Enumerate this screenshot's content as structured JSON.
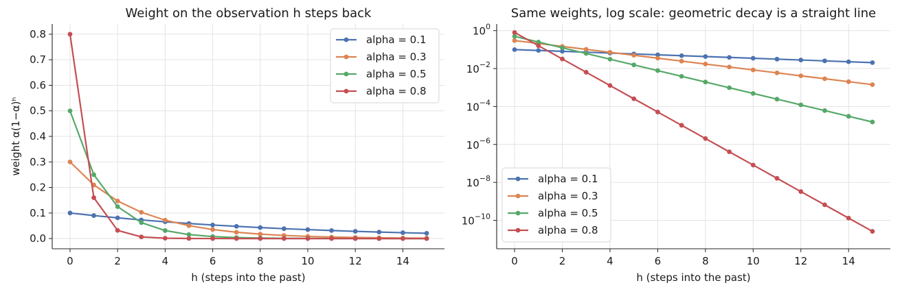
{
  "chart_data": [
    {
      "type": "line",
      "title": "Weight on the observation h steps back",
      "xlabel": "h (steps into the past)",
      "ylabel": "weight  α(1−α)ʰ",
      "xlim": [
        -0.75,
        15.75
      ],
      "ylim": [
        -0.04,
        0.84
      ],
      "yscale": "linear",
      "xticks": [
        0,
        2,
        4,
        6,
        8,
        10,
        12,
        14
      ],
      "yticks": [
        0.0,
        0.1,
        0.2,
        0.3,
        0.4,
        0.5,
        0.6,
        0.7,
        0.8
      ],
      "ytick_labels": [
        "0.0",
        "0.1",
        "0.2",
        "0.3",
        "0.4",
        "0.5",
        "0.6",
        "0.7",
        "0.8"
      ],
      "grid": true,
      "legend_position": "upper right",
      "x": [
        0,
        1,
        2,
        3,
        4,
        5,
        6,
        7,
        8,
        9,
        10,
        11,
        12,
        13,
        14,
        15
      ],
      "series": [
        {
          "name": "alpha = 0.1",
          "color": "#4c72b0",
          "values": [
            0.1,
            0.09,
            0.081,
            0.0729,
            0.0656,
            0.059,
            0.0531,
            0.0478,
            0.043,
            0.0387,
            0.0349,
            0.0314,
            0.0282,
            0.0254,
            0.0229,
            0.0206
          ]
        },
        {
          "name": "alpha = 0.3",
          "color": "#dd8452",
          "values": [
            0.3,
            0.21,
            0.147,
            0.1029,
            0.072,
            0.0504,
            0.0353,
            0.0247,
            0.0173,
            0.0121,
            0.0085,
            0.0059,
            0.0042,
            0.0029,
            0.002,
            0.0014
          ]
        },
        {
          "name": "alpha = 0.5",
          "color": "#55a868",
          "values": [
            0.5,
            0.25,
            0.125,
            0.0625,
            0.0313,
            0.0156,
            0.0078,
            0.0039,
            0.002,
            0.001,
            0.0005,
            0.0002,
            0.0001,
            0.0001,
            0.0,
            0.0
          ]
        },
        {
          "name": "alpha = 0.8",
          "color": "#c44e52",
          "values": [
            0.8,
            0.16,
            0.032,
            0.0064,
            0.0013,
            0.0003,
            0.0001,
            0.0,
            0.0,
            0.0,
            0.0,
            0.0,
            0.0,
            0.0,
            0.0,
            0.0
          ]
        }
      ]
    },
    {
      "type": "line",
      "title": "Same weights, log scale: geometric decay is a straight line",
      "xlabel": "h (steps into the past)",
      "ylabel": "",
      "xlim": [
        -0.75,
        15.75
      ],
      "ylim_log10": [
        -11.5,
        0.35
      ],
      "yscale": "log",
      "xticks": [
        0,
        2,
        4,
        6,
        8,
        10,
        12,
        14
      ],
      "yticks_exponents": [
        0,
        -2,
        -4,
        -6,
        -8,
        -10
      ],
      "ytick_labels": [
        "10",
        "10",
        "10",
        "10",
        "10",
        "10"
      ],
      "ytick_superscripts": [
        "0",
        "−2",
        "−4",
        "−6",
        "−8",
        "−10"
      ],
      "grid": true,
      "legend_position": "lower left",
      "x": [
        0,
        1,
        2,
        3,
        4,
        5,
        6,
        7,
        8,
        9,
        10,
        11,
        12,
        13,
        14,
        15
      ],
      "series": [
        {
          "name": "alpha = 0.1",
          "color": "#4c72b0",
          "values": [
            0.1,
            0.09,
            0.081,
            0.0729,
            0.06561,
            0.059049,
            0.0531441,
            0.04782969,
            0.043046721,
            0.0387420489,
            0.03486784401,
            0.031381059609,
            0.0282429536481,
            0.02541865828329,
            0.022876792454961,
            0.0205891132094649
          ]
        },
        {
          "name": "alpha = 0.3",
          "color": "#dd8452",
          "values": [
            0.3,
            0.21,
            0.147,
            0.1029,
            0.07203,
            0.050421,
            0.0352947,
            0.02470629,
            0.017294403,
            0.0121060821,
            0.00847425747,
            0.005931980229,
            0.0041523861603,
            0.00290667031221,
            0.002034669218547,
            0.0014242684529829
          ]
        },
        {
          "name": "alpha = 0.5",
          "color": "#55a868",
          "values": [
            0.5,
            0.25,
            0.125,
            0.0625,
            0.03125,
            0.015625,
            0.0078125,
            0.00390625,
            0.001953125,
            0.0009765625,
            0.00048828125,
            0.000244140625,
            0.0001220703125,
            6.103515625e-05,
            3.0517578125e-05,
            1.52587890625e-05
          ]
        },
        {
          "name": "alpha = 0.8",
          "color": "#c44e52",
          "values": [
            0.8,
            0.16,
            0.032,
            0.0064,
            0.00128,
            0.000256,
            5.12e-05,
            1.024e-05,
            2.048e-06,
            4.096e-07,
            8.192e-08,
            1.6384e-08,
            3.2768e-09,
            6.5536e-10,
            1.31072e-10,
            2.62144e-11
          ]
        }
      ]
    }
  ]
}
